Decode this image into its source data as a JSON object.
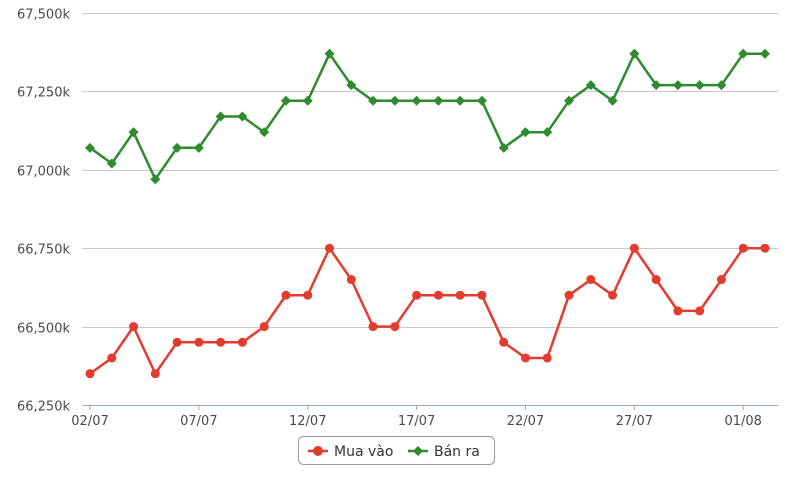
{
  "chart_data": {
    "type": "line",
    "title": "",
    "xlabel": "",
    "ylabel": "",
    "ylim": [
      66250,
      67500
    ],
    "y_ticks": [
      66250,
      66500,
      66750,
      67000,
      67250,
      67500
    ],
    "y_tick_labels": [
      "66,250k",
      "66,500k",
      "66,750k",
      "67,000k",
      "67,250k",
      "67,500k"
    ],
    "x_ticks": [
      "02/07",
      "07/07",
      "12/07",
      "17/07",
      "22/07",
      "27/07",
      "01/08"
    ],
    "x": [
      "02/07",
      "03/07",
      "04/07",
      "05/07",
      "06/07",
      "07/07",
      "08/07",
      "09/07",
      "10/07",
      "11/07",
      "12/07",
      "13/07",
      "14/07",
      "15/07",
      "16/07",
      "17/07",
      "18/07",
      "19/07",
      "20/07",
      "21/07",
      "22/07",
      "23/07",
      "24/07",
      "25/07",
      "26/07",
      "27/07",
      "28/07",
      "29/07",
      "30/07",
      "31/07",
      "01/08",
      "02/08"
    ],
    "grid": true,
    "legend_position": "bottom-center",
    "series": [
      {
        "name": "Mua vào",
        "color": "#e33b2e",
        "marker": "circle",
        "values": [
          66350,
          66400,
          66500,
          66350,
          66450,
          66450,
          66450,
          66450,
          66500,
          66600,
          66600,
          66750,
          66650,
          66500,
          66500,
          66600,
          66600,
          66600,
          66600,
          66450,
          66400,
          66400,
          66600,
          66650,
          66600,
          66750,
          66650,
          66550,
          66550,
          66650,
          66750,
          66750
        ]
      },
      {
        "name": "Bán ra",
        "color": "#2e8b2e",
        "marker": "diamond",
        "values": [
          67070,
          67020,
          67120,
          66970,
          67070,
          67070,
          67170,
          67170,
          67120,
          67220,
          67220,
          67370,
          67270,
          67220,
          67220,
          67220,
          67220,
          67220,
          67220,
          67070,
          67120,
          67120,
          67220,
          67270,
          67220,
          67370,
          67270,
          67270,
          67270,
          67270,
          67370,
          67370
        ]
      }
    ]
  }
}
